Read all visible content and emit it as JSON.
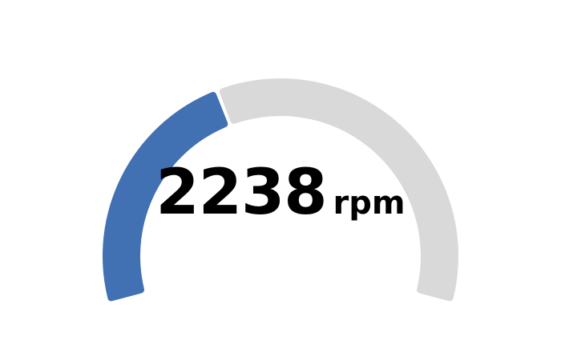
{
  "chart_data": {
    "type": "gauge",
    "value": 2238,
    "unit": "rpm",
    "fill_fraction": 0.4,
    "colors": {
      "value_arc": "#4170b3",
      "track_arc": "#d9d9d9"
    }
  }
}
